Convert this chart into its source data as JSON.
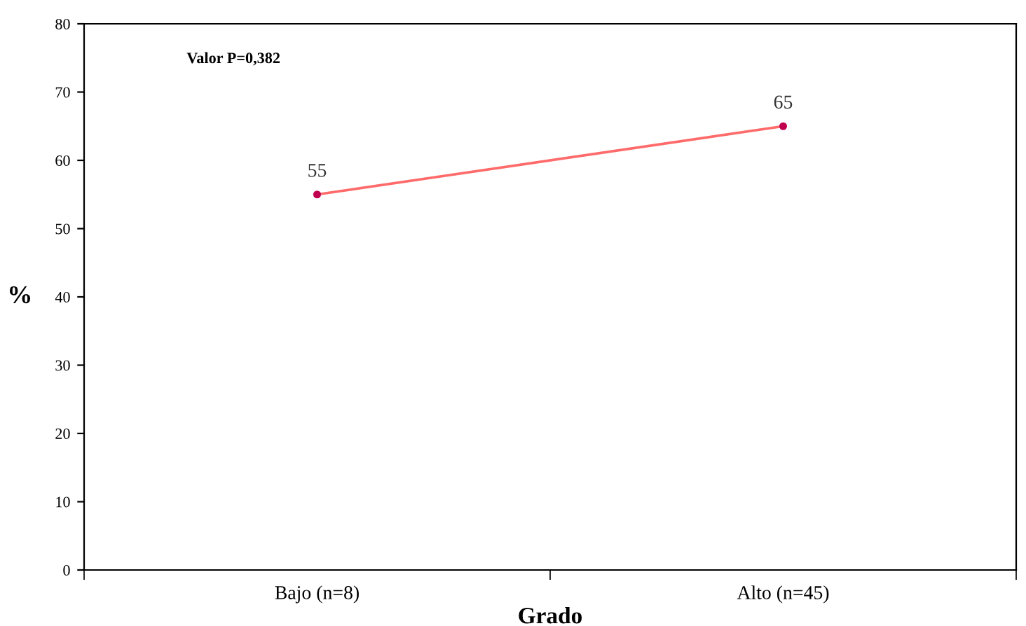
{
  "chart_data": {
    "type": "line",
    "xlabel": "Grado",
    "ylabel": "%",
    "annotations": [
      "Valor P=0,382"
    ],
    "categories": [
      "Bajo (n=8)",
      "Alto (n=45)"
    ],
    "series": [
      {
        "color": "#ff6b6b",
        "values": [
          55,
          65
        ]
      }
    ],
    "ylim": [
      0,
      80
    ],
    "yticks": [
      0,
      10,
      20,
      30,
      40,
      50,
      60,
      70,
      80
    ],
    "grid": false,
    "marker": "circle",
    "line_style": "solid",
    "data_labels": true
  }
}
